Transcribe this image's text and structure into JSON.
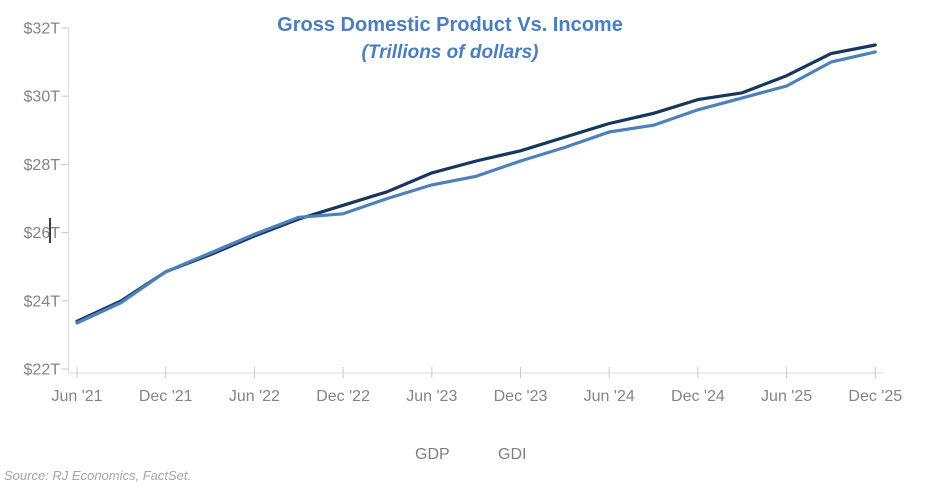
{
  "title": "Gross Domestic Product Vs. Income",
  "subtitle": "(Trillions of dollars)",
  "source": "Source: RJ Economics, FactSet.",
  "legend": {
    "gdp_label": "GDP",
    "gdi_label": "GDI"
  },
  "colors": {
    "gdp_line": "#17375D",
    "gdi_line": "#4E80B9",
    "title_text": "#4A7EBD",
    "axis_text": "#848484",
    "axis_line": "#DCDCDC",
    "tick_mark": "#C9C9C9",
    "source_text": "#A6A6A6"
  },
  "chart_data": {
    "type": "line",
    "title": "Gross Domestic Product Vs. Income",
    "subtitle": "(Trillions of dollars)",
    "x": [
      "Jun '21",
      "Sep '21",
      "Dec '21",
      "Mar '22",
      "Jun '22",
      "Sep '22",
      "Dec '22",
      "Mar '23",
      "Jun '23",
      "Sep '23",
      "Dec '23",
      "Mar '24",
      "Jun '24",
      "Sep '24",
      "Dec '24",
      "Mar '25",
      "Jun '25",
      "Sep '25",
      "Dec '25"
    ],
    "x_tick_labels": [
      "Jun '21",
      "Dec '21",
      "Jun '22",
      "Dec '22",
      "Jun '23",
      "Dec '23",
      "Jun '24",
      "Dec '24",
      "Jun '25",
      "Dec '25"
    ],
    "y_tick_labels": [
      "$22T",
      "$24T",
      "$26T",
      "$28T",
      "$30T",
      "$32T"
    ],
    "ylim": [
      22,
      32
    ],
    "y_tick_step": 2,
    "y_unit": "trillion USD",
    "grid": false,
    "legend_position": "bottom",
    "series": [
      {
        "name": "GDP",
        "color_key": "gdp_line",
        "values": [
          23.4,
          24.0,
          24.85,
          25.35,
          25.9,
          26.4,
          26.8,
          27.2,
          27.75,
          28.1,
          28.4,
          28.8,
          29.2,
          29.5,
          29.9,
          30.1,
          30.6,
          31.25,
          31.5
        ]
      },
      {
        "name": "GDI",
        "color_key": "gdi_line",
        "values": [
          23.35,
          23.95,
          24.85,
          25.4,
          25.95,
          26.45,
          26.55,
          27.0,
          27.4,
          27.65,
          28.1,
          28.5,
          28.95,
          29.15,
          29.6,
          29.95,
          30.3,
          31.0,
          31.3
        ]
      }
    ]
  }
}
